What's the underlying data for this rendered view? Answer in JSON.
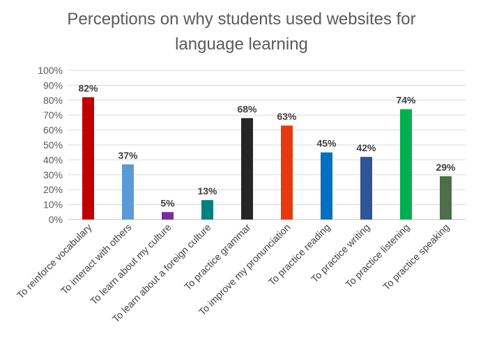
{
  "chart_data": {
    "type": "bar",
    "title": "Perceptions on why students used websites for language learning",
    "title_lines": [
      "Perceptions on why students used websites for",
      "language learning"
    ],
    "xlabel": "",
    "ylabel": "",
    "ylim": [
      0,
      100
    ],
    "y_ticks": [
      "0%",
      "10%",
      "20%",
      "30%",
      "40%",
      "50%",
      "60%",
      "70%",
      "80%",
      "90%",
      "100%"
    ],
    "grid": true,
    "legend": "none",
    "categories": [
      "To reinforce vocabulary",
      "To interact with others",
      "To learn about my culture",
      "To learn about a foreign culture",
      "To practice grammar",
      "To improve my pronunciation",
      "To practice reading",
      "To practice writing",
      "To practice listening",
      "To practice speaking"
    ],
    "values": [
      82,
      37,
      5,
      13,
      68,
      63,
      45,
      42,
      74,
      29
    ],
    "data_labels": [
      "82%",
      "37%",
      "5%",
      "13%",
      "68%",
      "63%",
      "45%",
      "42%",
      "74%",
      "29%"
    ],
    "colors": [
      "#c00000",
      "#5b9bd5",
      "#7030a0",
      "#008080",
      "#262626",
      "#e8380d",
      "#0070c0",
      "#2f5597",
      "#00b050",
      "#4e6e4a"
    ]
  }
}
